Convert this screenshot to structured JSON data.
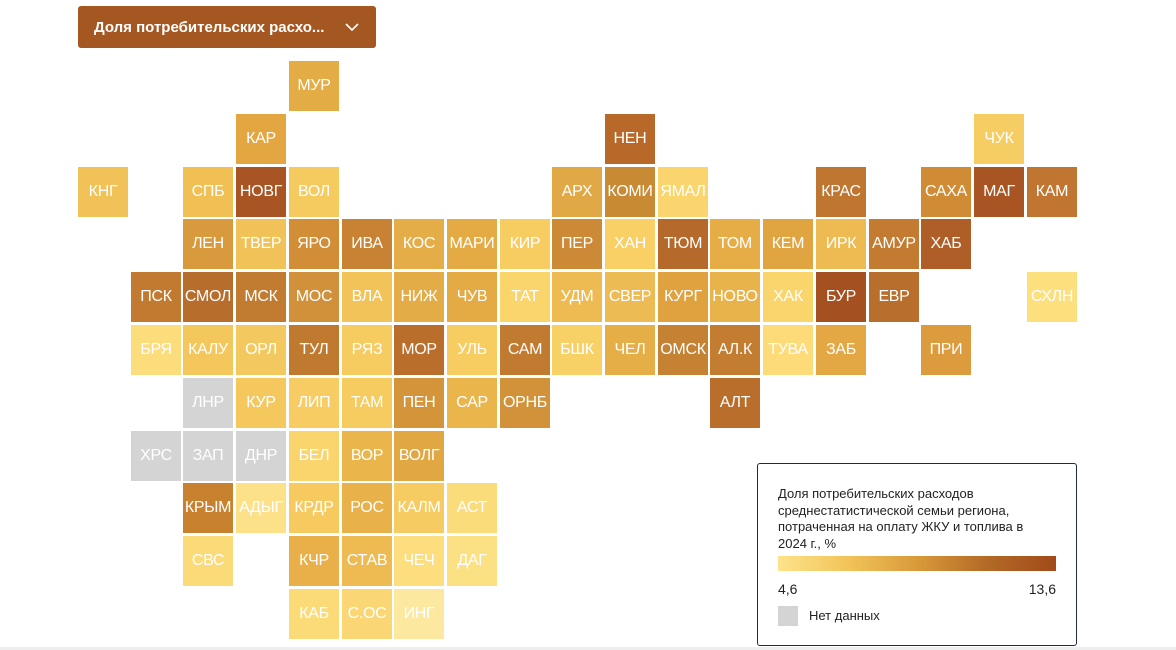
{
  "selector": {
    "label": "Доля потребительских расхо...",
    "chevron_icon": "chevron-down-icon"
  },
  "legend": {
    "title": "Доля потребительских расходов среднестатистической семьи региона, потраченная на оплату ЖКУ и топлива в 2024 г., %",
    "min_label": "4,6",
    "max_label": "13,6",
    "no_data_label": "Нет данных",
    "colors": {
      "low": "#fde38a",
      "high": "#a24a1a",
      "no_data": "#d4d4d4"
    }
  },
  "tiles": [
    {
      "code": "МУР",
      "row": 0,
      "col": 4,
      "color": "#e4ac44"
    },
    {
      "code": "КАР",
      "row": 1,
      "col": 3,
      "color": "#e3a640"
    },
    {
      "code": "НЕН",
      "row": 1,
      "col": 10,
      "color": "#b8692a"
    },
    {
      "code": "ЧУК",
      "row": 1,
      "col": 17,
      "color": "#f6cd63"
    },
    {
      "code": "КНГ",
      "row": 2,
      "col": 0,
      "color": "#f0c258"
    },
    {
      "code": "СПБ",
      "row": 2,
      "col": 2,
      "color": "#f0c055"
    },
    {
      "code": "НОВГ",
      "row": 2,
      "col": 3,
      "color": "#a85423"
    },
    {
      "code": "ВОЛ",
      "row": 2,
      "col": 4,
      "color": "#f5cb5f"
    },
    {
      "code": "АРХ",
      "row": 2,
      "col": 9,
      "color": "#e1a946"
    },
    {
      "code": "КОМИ",
      "row": 2,
      "col": 10,
      "color": "#c98a34"
    },
    {
      "code": "ЯМАЛ",
      "row": 2,
      "col": 11,
      "color": "#fad56d"
    },
    {
      "code": "КРАС",
      "row": 2,
      "col": 14,
      "color": "#be7630"
    },
    {
      "code": "САХА",
      "row": 2,
      "col": 16,
      "color": "#cf8c35"
    },
    {
      "code": "МАГ",
      "row": 2,
      "col": 17,
      "color": "#a85423"
    },
    {
      "code": "КАМ",
      "row": 2,
      "col": 18,
      "color": "#c07530"
    },
    {
      "code": "ЛЕН",
      "row": 3,
      "col": 2,
      "color": "#d9993d"
    },
    {
      "code": "ТВЕР",
      "row": 3,
      "col": 3,
      "color": "#f0c257"
    },
    {
      "code": "ЯРО",
      "row": 3,
      "col": 4,
      "color": "#d28e36"
    },
    {
      "code": "ИВА",
      "row": 3,
      "col": 5,
      "color": "#c78233"
    },
    {
      "code": "КОС",
      "row": 3,
      "col": 6,
      "color": "#e4ad48"
    },
    {
      "code": "МАРИ",
      "row": 3,
      "col": 7,
      "color": "#e4ab45"
    },
    {
      "code": "КИР",
      "row": 3,
      "col": 8,
      "color": "#f7cd62"
    },
    {
      "code": "ПЕР",
      "row": 3,
      "col": 9,
      "color": "#cc8a36"
    },
    {
      "code": "ХАН",
      "row": 3,
      "col": 10,
      "color": "#f8d066"
    },
    {
      "code": "ТЮМ",
      "row": 3,
      "col": 11,
      "color": "#b56a2b"
    },
    {
      "code": "ТОМ",
      "row": 3,
      "col": 12,
      "color": "#e6ad46"
    },
    {
      "code": "КЕМ",
      "row": 3,
      "col": 13,
      "color": "#e0a441"
    },
    {
      "code": "ИРК",
      "row": 3,
      "col": 14,
      "color": "#edbb52"
    },
    {
      "code": "АМУР",
      "row": 3,
      "col": 15,
      "color": "#c27b30"
    },
    {
      "code": "ХАБ",
      "row": 3,
      "col": 16,
      "color": "#b05e27"
    },
    {
      "code": "ПСК",
      "row": 4,
      "col": 1,
      "color": "#c27a31"
    },
    {
      "code": "СМОЛ",
      "row": 4,
      "col": 2,
      "color": "#b76d2c"
    },
    {
      "code": "МСК",
      "row": 4,
      "col": 3,
      "color": "#c27c31"
    },
    {
      "code": "МОС",
      "row": 4,
      "col": 4,
      "color": "#d0913a"
    },
    {
      "code": "ВЛА",
      "row": 4,
      "col": 5,
      "color": "#f2c359"
    },
    {
      "code": "НИЖ",
      "row": 4,
      "col": 6,
      "color": "#e4ac46"
    },
    {
      "code": "ЧУВ",
      "row": 4,
      "col": 7,
      "color": "#e4aa43"
    },
    {
      "code": "ТАТ",
      "row": 4,
      "col": 8,
      "color": "#fad56c"
    },
    {
      "code": "УДМ",
      "row": 4,
      "col": 9,
      "color": "#edbb51"
    },
    {
      "code": "СВЕР",
      "row": 4,
      "col": 10,
      "color": "#edbb53"
    },
    {
      "code": "КУРГ",
      "row": 4,
      "col": 11,
      "color": "#e0a23f"
    },
    {
      "code": "НОВО",
      "row": 4,
      "col": 12,
      "color": "#e8b34b"
    },
    {
      "code": "ХАК",
      "row": 4,
      "col": 13,
      "color": "#fad56c"
    },
    {
      "code": "БУР",
      "row": 4,
      "col": 14,
      "color": "#a55020"
    },
    {
      "code": "ЕВР",
      "row": 4,
      "col": 15,
      "color": "#b86e2c"
    },
    {
      "code": "СХЛН",
      "row": 4,
      "col": 18,
      "color": "#fce07e"
    },
    {
      "code": "БРЯ",
      "row": 5,
      "col": 1,
      "color": "#fbdd7c"
    },
    {
      "code": "КАЛУ",
      "row": 5,
      "col": 2,
      "color": "#f4c75c"
    },
    {
      "code": "ОРЛ",
      "row": 5,
      "col": 3,
      "color": "#f3c95f"
    },
    {
      "code": "ТУЛ",
      "row": 5,
      "col": 4,
      "color": "#c07a30"
    },
    {
      "code": "РЯЗ",
      "row": 5,
      "col": 5,
      "color": "#f6cc61"
    },
    {
      "code": "МОР",
      "row": 5,
      "col": 6,
      "color": "#b96e2c"
    },
    {
      "code": "УЛЬ",
      "row": 5,
      "col": 7,
      "color": "#f7cc61"
    },
    {
      "code": "САМ",
      "row": 5,
      "col": 8,
      "color": "#c17b31"
    },
    {
      "code": "БШК",
      "row": 5,
      "col": 9,
      "color": "#f8d166"
    },
    {
      "code": "ЧЕЛ",
      "row": 5,
      "col": 10,
      "color": "#e6ae47"
    },
    {
      "code": "ОМСК",
      "row": 5,
      "col": 11,
      "color": "#c68233"
    },
    {
      "code": "АЛ.К",
      "row": 5,
      "col": 12,
      "color": "#c27d31"
    },
    {
      "code": "ТУВА",
      "row": 5,
      "col": 13,
      "color": "#fcdb78"
    },
    {
      "code": "ЗАБ",
      "row": 5,
      "col": 14,
      "color": "#e3a744"
    },
    {
      "code": "ПРИ",
      "row": 5,
      "col": 16,
      "color": "#dc9c3d"
    },
    {
      "code": "ЛНР",
      "row": 6,
      "col": 2,
      "color": "#d4d4d4"
    },
    {
      "code": "КУР",
      "row": 6,
      "col": 3,
      "color": "#f4c85d"
    },
    {
      "code": "ЛИП",
      "row": 6,
      "col": 4,
      "color": "#f7cd63"
    },
    {
      "code": "ТАМ",
      "row": 6,
      "col": 5,
      "color": "#f6cb5f"
    },
    {
      "code": "ПЕН",
      "row": 6,
      "col": 6,
      "color": "#d4953a"
    },
    {
      "code": "САР",
      "row": 6,
      "col": 7,
      "color": "#eab64c"
    },
    {
      "code": "ОРНБ",
      "row": 6,
      "col": 8,
      "color": "#d29239"
    },
    {
      "code": "АЛТ",
      "row": 6,
      "col": 12,
      "color": "#b96e2c"
    },
    {
      "code": "ХРС",
      "row": 7,
      "col": 1,
      "color": "#d4d4d4"
    },
    {
      "code": "ЗАП",
      "row": 7,
      "col": 2,
      "color": "#d4d4d4"
    },
    {
      "code": "ДНР",
      "row": 7,
      "col": 3,
      "color": "#d4d4d4"
    },
    {
      "code": "БЕЛ",
      "row": 7,
      "col": 4,
      "color": "#fad56d"
    },
    {
      "code": "ВОР",
      "row": 7,
      "col": 5,
      "color": "#eab54b"
    },
    {
      "code": "ВОЛГ",
      "row": 7,
      "col": 6,
      "color": "#e1a743"
    },
    {
      "code": "КРЫМ",
      "row": 8,
      "col": 2,
      "color": "#c7812f"
    },
    {
      "code": "АДЫГ",
      "row": 8,
      "col": 3,
      "color": "#fde189"
    },
    {
      "code": "КРДР",
      "row": 8,
      "col": 4,
      "color": "#f6ca5f"
    },
    {
      "code": "РОС",
      "row": 8,
      "col": 5,
      "color": "#e8b149"
    },
    {
      "code": "КАЛМ",
      "row": 8,
      "col": 6,
      "color": "#f6cb61"
    },
    {
      "code": "АСТ",
      "row": 8,
      "col": 7,
      "color": "#fbdc7a"
    },
    {
      "code": "СВС",
      "row": 9,
      "col": 2,
      "color": "#fbdb78"
    },
    {
      "code": "КЧР",
      "row": 9,
      "col": 4,
      "color": "#e9b04a"
    },
    {
      "code": "СТАВ",
      "row": 9,
      "col": 5,
      "color": "#edbb52"
    },
    {
      "code": "ЧЕЧ",
      "row": 9,
      "col": 6,
      "color": "#fcde7f"
    },
    {
      "code": "ДАГ",
      "row": 9,
      "col": 7,
      "color": "#fce084"
    },
    {
      "code": "КАБ",
      "row": 10,
      "col": 4,
      "color": "#fbdb78"
    },
    {
      "code": "С.ОС",
      "row": 10,
      "col": 5,
      "color": "#fad674"
    },
    {
      "code": "ИНГ",
      "row": 10,
      "col": 6,
      "color": "#fde8a0"
    }
  ]
}
